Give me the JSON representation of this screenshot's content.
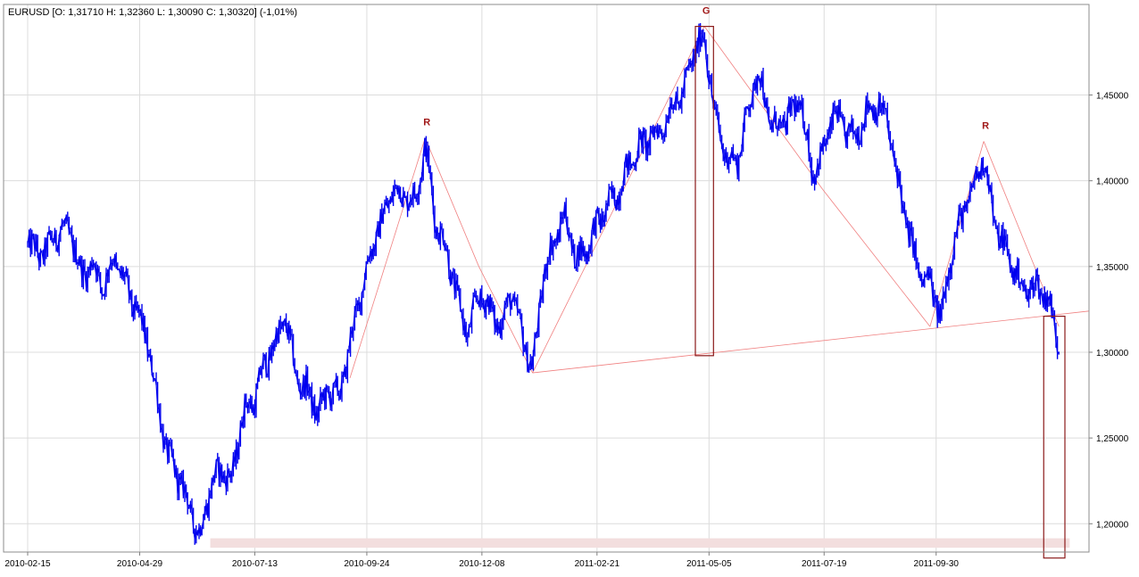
{
  "chart_data": {
    "type": "ohlc",
    "symbol_header": "EURUSD [O: 1,31710  H: 1,32360  L: 1,30090  C: 1,30320] (-1,01%)",
    "x_ticks": [
      "2010-02-15",
      "2010-04-29",
      "2010-07-13",
      "2010-09-24",
      "2010-12-08",
      "2011-02-21",
      "2011-05-05",
      "2011-07-19",
      "2011-09-30"
    ],
    "y_ticks": [
      "1,20000",
      "1,25000",
      "1,30000",
      "1,35000",
      "1,40000",
      "1,45000"
    ],
    "y_tick_values": [
      1.2,
      1.25,
      1.3,
      1.35,
      1.4,
      1.45
    ],
    "ylim": [
      1.1835,
      1.5028
    ],
    "x_range": [
      "2010-02-15",
      "2011-12-20"
    ],
    "grid": true,
    "series_color": "#0000ee",
    "price_path": [
      [
        "2010-02-15",
        1.365
      ],
      [
        "2010-02-22",
        1.356
      ],
      [
        "2010-03-01",
        1.362
      ],
      [
        "2010-03-08",
        1.372
      ],
      [
        "2010-03-15",
        1.369
      ],
      [
        "2010-03-22",
        1.345
      ],
      [
        "2010-03-29",
        1.352
      ],
      [
        "2010-04-05",
        1.338
      ],
      [
        "2010-04-12",
        1.355
      ],
      [
        "2010-04-19",
        1.341
      ],
      [
        "2010-04-26",
        1.325
      ],
      [
        "2010-05-03",
        1.31
      ],
      [
        "2010-05-10",
        1.275
      ],
      [
        "2010-05-17",
        1.24
      ],
      [
        "2010-05-24",
        1.228
      ],
      [
        "2010-05-31",
        1.21
      ],
      [
        "2010-06-07",
        1.193
      ],
      [
        "2010-06-14",
        1.222
      ],
      [
        "2010-06-21",
        1.232
      ],
      [
        "2010-06-28",
        1.225
      ],
      [
        "2010-07-05",
        1.265
      ],
      [
        "2010-07-12",
        1.271
      ],
      [
        "2010-07-19",
        1.292
      ],
      [
        "2010-07-26",
        1.305
      ],
      [
        "2010-08-02",
        1.32
      ],
      [
        "2010-08-09",
        1.285
      ],
      [
        "2010-08-16",
        1.278
      ],
      [
        "2010-08-23",
        1.264
      ],
      [
        "2010-08-30",
        1.278
      ],
      [
        "2010-09-06",
        1.274
      ],
      [
        "2010-09-13",
        1.305
      ],
      [
        "2010-09-20",
        1.335
      ],
      [
        "2010-09-27",
        1.36
      ],
      [
        "2010-10-04",
        1.378
      ],
      [
        "2010-10-11",
        1.395
      ],
      [
        "2010-10-18",
        1.392
      ],
      [
        "2010-10-25",
        1.388
      ],
      [
        "2010-11-01",
        1.42
      ],
      [
        "2010-11-08",
        1.375
      ],
      [
        "2010-11-15",
        1.36
      ],
      [
        "2010-11-22",
        1.33
      ],
      [
        "2010-11-29",
        1.31
      ],
      [
        "2010-12-06",
        1.335
      ],
      [
        "2010-12-13",
        1.325
      ],
      [
        "2010-12-20",
        1.315
      ],
      [
        "2010-12-27",
        1.335
      ],
      [
        "2011-01-03",
        1.31
      ],
      [
        "2011-01-10",
        1.29
      ],
      [
        "2011-01-17",
        1.345
      ],
      [
        "2011-01-24",
        1.365
      ],
      [
        "2011-01-31",
        1.38
      ],
      [
        "2011-02-07",
        1.355
      ],
      [
        "2011-02-14",
        1.36
      ],
      [
        "2011-02-21",
        1.375
      ],
      [
        "2011-02-28",
        1.385
      ],
      [
        "2011-03-07",
        1.395
      ],
      [
        "2011-03-14",
        1.41
      ],
      [
        "2011-03-21",
        1.42
      ],
      [
        "2011-03-28",
        1.425
      ],
      [
        "2011-04-04",
        1.43
      ],
      [
        "2011-04-11",
        1.445
      ],
      [
        "2011-04-18",
        1.45
      ],
      [
        "2011-04-25",
        1.475
      ],
      [
        "2011-05-02",
        1.485
      ],
      [
        "2011-05-09",
        1.435
      ],
      [
        "2011-05-16",
        1.415
      ],
      [
        "2011-05-23",
        1.41
      ],
      [
        "2011-05-30",
        1.44
      ],
      [
        "2011-06-06",
        1.465
      ],
      [
        "2011-06-13",
        1.435
      ],
      [
        "2011-06-20",
        1.43
      ],
      [
        "2011-06-27",
        1.44
      ],
      [
        "2011-07-04",
        1.445
      ],
      [
        "2011-07-11",
        1.405
      ],
      [
        "2011-07-18",
        1.415
      ],
      [
        "2011-07-25",
        1.44
      ],
      [
        "2011-08-01",
        1.43
      ],
      [
        "2011-08-08",
        1.425
      ],
      [
        "2011-08-15",
        1.44
      ],
      [
        "2011-08-22",
        1.445
      ],
      [
        "2011-08-29",
        1.435
      ],
      [
        "2011-09-05",
        1.4
      ],
      [
        "2011-09-12",
        1.37
      ],
      [
        "2011-09-19",
        1.345
      ],
      [
        "2011-09-26",
        1.34
      ],
      [
        "2011-10-03",
        1.32
      ],
      [
        "2011-10-10",
        1.36
      ],
      [
        "2011-10-17",
        1.38
      ],
      [
        "2011-10-24",
        1.395
      ],
      [
        "2011-10-31",
        1.415
      ],
      [
        "2011-11-07",
        1.375
      ],
      [
        "2011-11-14",
        1.36
      ],
      [
        "2011-11-21",
        1.345
      ],
      [
        "2011-11-28",
        1.335
      ],
      [
        "2011-12-05",
        1.34
      ],
      [
        "2011-12-12",
        1.33
      ],
      [
        "2011-12-19",
        1.305
      ]
    ],
    "pattern_line": [
      [
        "2010-09-13",
        1.285
      ],
      [
        "2010-11-01",
        1.425
      ],
      [
        "2010-12-06",
        1.35
      ],
      [
        "2011-01-10",
        1.288
      ],
      [
        "2011-05-02",
        1.49
      ],
      [
        "2011-07-18",
        1.395
      ],
      [
        "2011-09-26",
        1.315
      ],
      [
        "2011-10-31",
        1.423
      ],
      [
        "2011-12-19",
        1.315
      ]
    ],
    "neckline": [
      [
        "2011-01-10",
        1.288
      ],
      [
        "2011-12-26",
        1.324
      ]
    ],
    "annotations": [
      {
        "label": "R",
        "date": "2010-11-01",
        "price": 1.425
      },
      {
        "label": "G",
        "date": "2011-05-02",
        "price": 1.49
      },
      {
        "label": "R",
        "date": "2011-10-31",
        "price": 1.423
      }
    ],
    "highlight_boxes": [
      {
        "from": "2011-04-29",
        "to": "2011-05-05",
        "price_top": 1.49,
        "price_bottom": 1.298
      },
      {
        "from": "2011-12-12",
        "to": "2011-12-20",
        "price_top": 1.321,
        "price_bottom": 1.18
      }
    ],
    "support_band": {
      "from": "2010-06-14",
      "to": "2011-12-26",
      "price_top": 1.1915,
      "price_bottom": 1.186
    }
  }
}
